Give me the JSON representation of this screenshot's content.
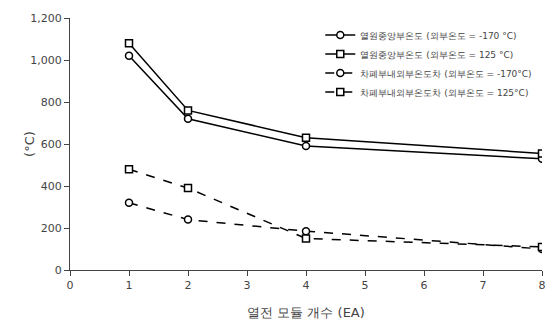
{
  "chart_data": {
    "type": "line",
    "x": [
      1,
      2,
      4,
      8
    ],
    "series": [
      {
        "name": "열원중앙부온도 (외부온도 = -170 °C)",
        "color": "black",
        "marker": "circle",
        "line_style": "solid",
        "values": [
          1020,
          720,
          590,
          530
        ]
      },
      {
        "name": "열원중앙부온도 (외부온도 = 125 °C)",
        "color": "black",
        "marker": "square",
        "line_style": "solid",
        "values": [
          1080,
          760,
          630,
          555
        ]
      },
      {
        "name": "차폐부내외부온도차 (외부온도 = -170°C)",
        "color": "black",
        "marker": "circle",
        "line_style": "dashed",
        "values": [
          320,
          240,
          185,
          100
        ]
      },
      {
        "name": "차폐부내외부온도차 (외부온도 = 125°C)",
        "color": "black",
        "marker": "square",
        "line_style": "dashed",
        "values": [
          480,
          390,
          150,
          110
        ]
      }
    ],
    "xlabel": "열전 모듈 개수 (EA)",
    "ylabel": "(°C)",
    "xlim": [
      0,
      8
    ],
    "xticks": [
      0,
      1,
      2,
      3,
      4,
      5,
      6,
      7,
      8
    ],
    "ylim": [
      0,
      1200
    ],
    "yticks": [
      0,
      200,
      400,
      600,
      800,
      {
        "value": 1000,
        "label": "1,000"
      },
      {
        "value": 1200,
        "label": "1,200"
      }
    ],
    "grid": false,
    "legend": "upper right"
  }
}
